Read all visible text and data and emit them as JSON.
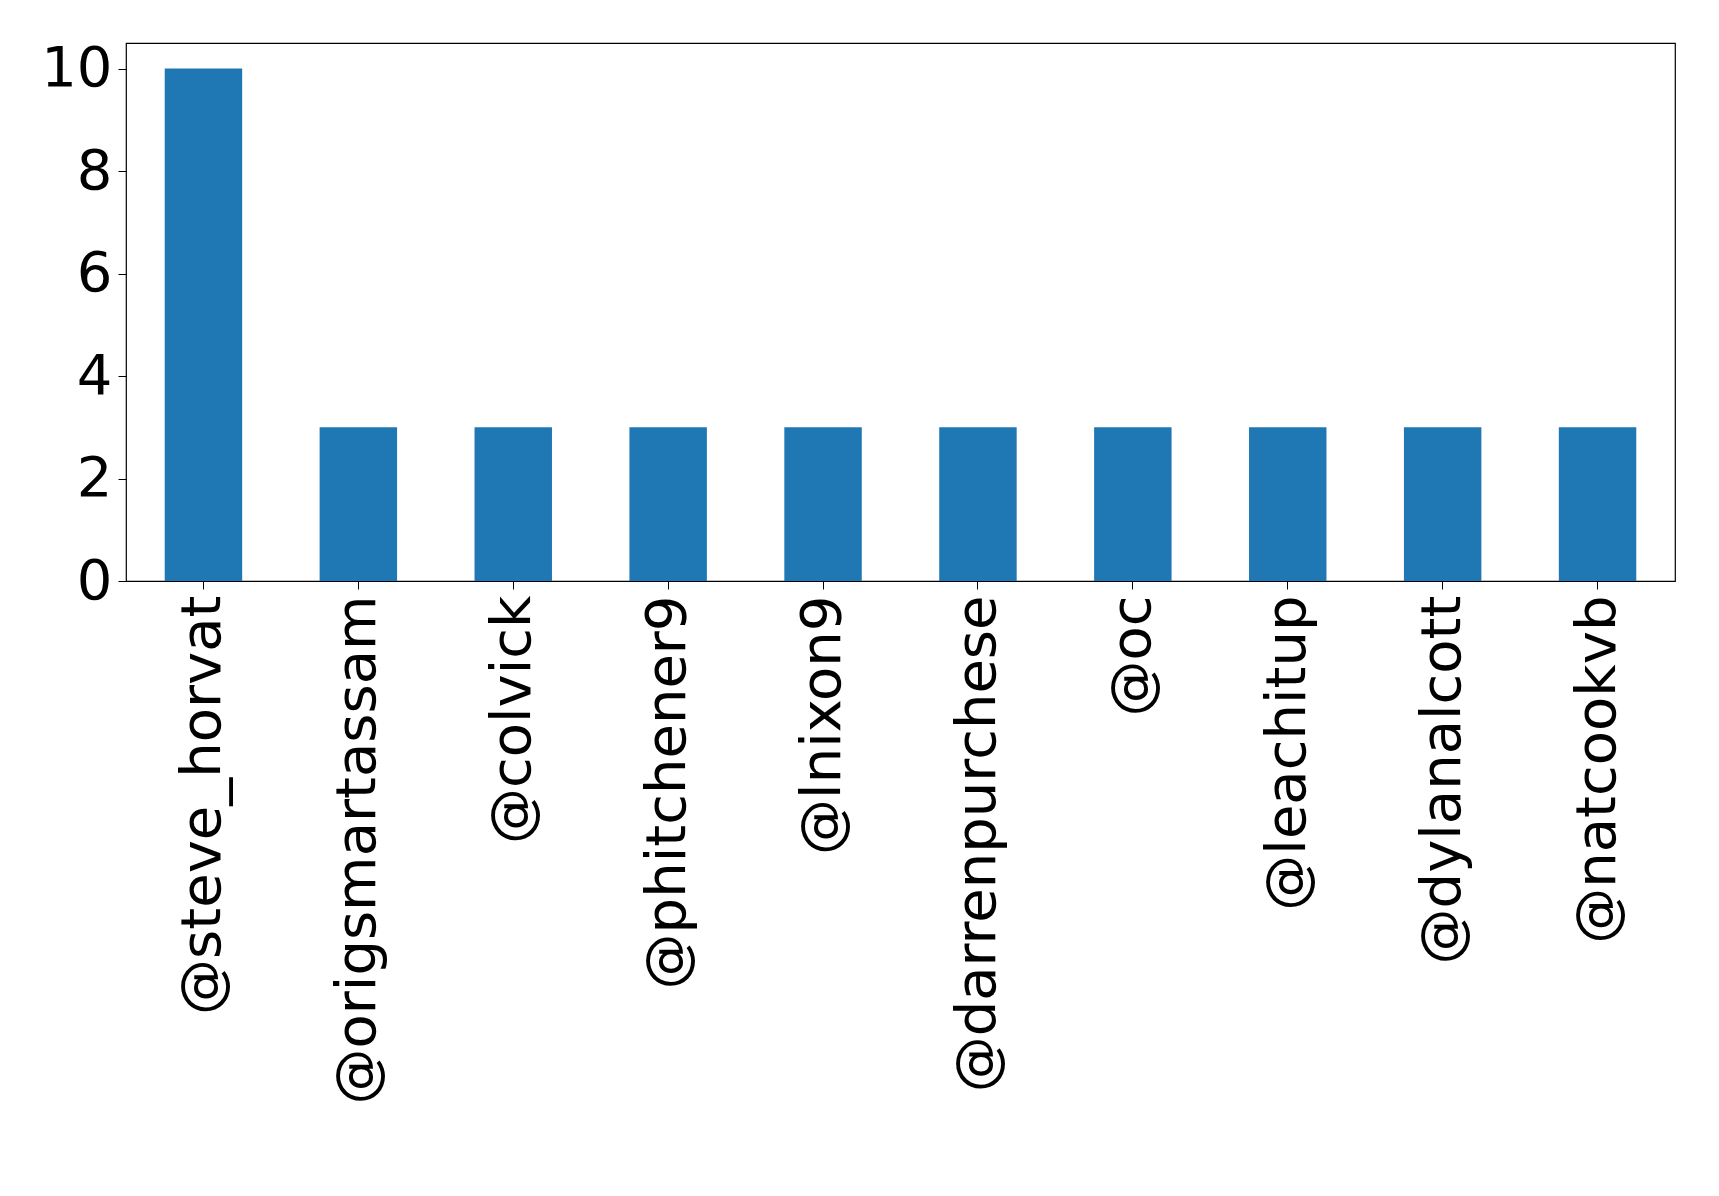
{
  "chart_data": {
    "type": "bar",
    "categories": [
      "@steve_horvat",
      "@origsmartassam",
      "@colvick",
      "@phitchener9",
      "@lnixon9",
      "@darrenpurchese",
      "@oc",
      "@leachitup",
      "@dylanalcott",
      "@natcookvb"
    ],
    "values": [
      10,
      3,
      3,
      3,
      3,
      3,
      3,
      3,
      3,
      3
    ],
    "color": "#1f77b4",
    "ylim": [
      0,
      10.5
    ],
    "yticks": [
      0,
      2,
      4,
      6,
      8,
      10
    ],
    "grid": false
  }
}
